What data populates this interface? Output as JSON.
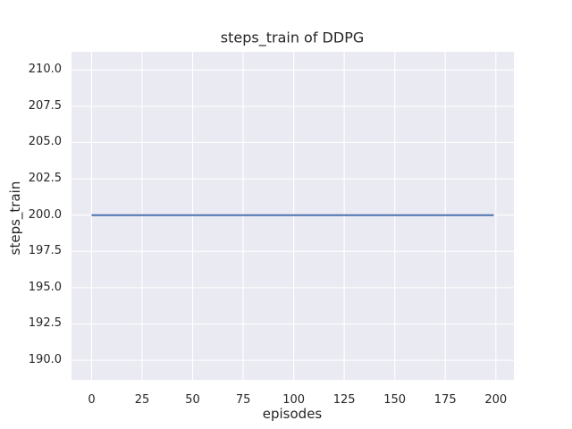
{
  "chart_data": {
    "type": "line",
    "title": "steps_train of DDPG",
    "xlabel": "episodes",
    "ylabel": "steps_train",
    "x_ticks": [
      0,
      25,
      50,
      75,
      100,
      125,
      150,
      175,
      200
    ],
    "x_tick_labels": [
      "0",
      "25",
      "50",
      "75",
      "100",
      "125",
      "150",
      "175",
      "200"
    ],
    "y_ticks": [
      190.0,
      192.5,
      195.0,
      197.5,
      200.0,
      202.5,
      205.0,
      207.5,
      210.0
    ],
    "y_tick_labels": [
      "190.0",
      "192.5",
      "195.0",
      "197.5",
      "200.0",
      "202.5",
      "205.0",
      "207.5",
      "210.0"
    ],
    "xlim": [
      -9.95,
      208.95
    ],
    "ylim": [
      188.65,
      211.25
    ],
    "grid": true,
    "legend_position": "none",
    "series": [
      {
        "name": "steps_train",
        "x": [
          0,
          199
        ],
        "y": [
          200,
          200
        ],
        "color": "#4c72b0",
        "line_width": 2
      }
    ],
    "colors": {
      "figure_background": "#ffffff",
      "plot_background": "#eaeaf2",
      "grid": "#ffffff",
      "text": "#262626",
      "line": "#4c72b0"
    }
  }
}
